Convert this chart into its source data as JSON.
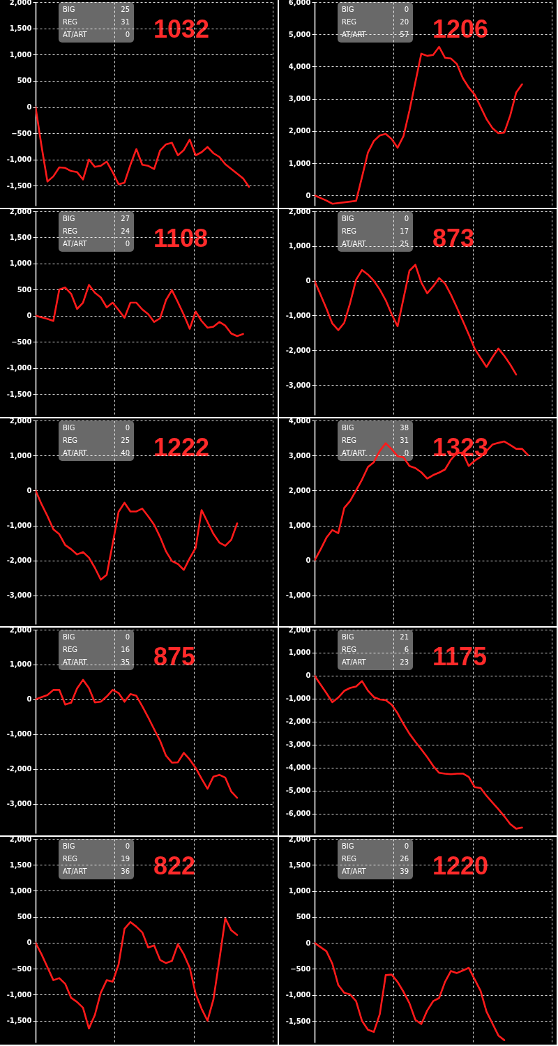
{
  "chart_data": [
    {
      "type": "line",
      "title": "1032",
      "annotations": [
        "BIG",
        "25",
        "REG",
        "31",
        "AT/ART",
        "0"
      ],
      "grid": true,
      "ylim": [
        -1880,
        2000
      ],
      "yticks": [
        {
          "value": 2000,
          "label": "2,000"
        },
        {
          "value": 1500,
          "label": "1,500"
        },
        {
          "value": 1000,
          "label": "1,000"
        },
        500,
        0,
        -500,
        {
          "value": -1000,
          "label": "-1,000"
        },
        {
          "value": -1500,
          "label": "-1,500"
        }
      ],
      "categories": [
        null,
        null,
        null,
        null,
        null,
        null,
        null,
        null,
        null,
        null,
        null,
        null,
        null,
        null,
        null,
        null,
        null,
        null,
        null,
        null,
        null,
        null,
        null,
        null,
        null,
        null,
        null,
        null,
        null,
        null,
        null,
        null,
        null,
        null,
        null,
        null,
        null,
        null,
        null,
        null,
        null
      ],
      "series": [
        {
          "color": "#ff1a1a",
          "values": [
            0,
            -740,
            -1420,
            -1320,
            -1150,
            -1160,
            -1220,
            -1240,
            -1380,
            -1000,
            -1140,
            -1120,
            -1040,
            -1240,
            -1470,
            -1440,
            -1100,
            -800,
            -1100,
            -1120,
            -1180,
            -830,
            -710,
            -680,
            -920,
            -820,
            -620,
            -920,
            -860,
            -760,
            -880,
            -950,
            -1090,
            -1180,
            -1270,
            -1360,
            -1520,
            null,
            null,
            null,
            null
          ]
        }
      ]
    },
    {
      "type": "line",
      "title": "1206",
      "annotations": [
        "BIG",
        "0",
        "REG",
        "20",
        "AT/ART",
        "57"
      ],
      "grid": true,
      "ylim": [
        -320,
        6000
      ],
      "yticks": [
        {
          "value": 6000,
          "label": "6,000"
        },
        {
          "value": 5000,
          "label": "5,000"
        },
        {
          "value": 4000,
          "label": "4,000"
        },
        {
          "value": 3000,
          "label": "3,000"
        },
        {
          "value": 2000,
          "label": "2,000"
        },
        {
          "value": 1000,
          "label": "1,000"
        },
        0
      ],
      "categories": [
        null,
        null,
        null,
        null,
        null,
        null,
        null,
        null,
        null,
        null,
        null,
        null,
        null,
        null,
        null,
        null,
        null,
        null,
        null,
        null,
        null,
        null,
        null,
        null,
        null,
        null,
        null,
        null,
        null,
        null,
        null,
        null,
        null,
        null,
        null,
        null,
        null,
        null,
        null,
        null,
        null
      ],
      "series": [
        {
          "color": "#ff1a1a",
          "values": [
            0,
            -80,
            -160,
            -260,
            null,
            null,
            null,
            -170,
            570,
            1330,
            1690,
            1860,
            1910,
            1750,
            1480,
            1840,
            2630,
            3510,
            4400,
            4330,
            4360,
            4610,
            4270,
            4250,
            4080,
            3640,
            3350,
            3130,
            2750,
            2370,
            2090,
            1930,
            1950,
            2480,
            3190,
            3450,
            null,
            null,
            null,
            null,
            null
          ]
        }
      ]
    },
    {
      "type": "line",
      "title": "1108",
      "annotations": [
        "BIG",
        "27",
        "REG",
        "24",
        "AT/ART",
        "0"
      ],
      "grid": true,
      "ylim": [
        -1900,
        2000
      ],
      "yticks": [
        {
          "value": 2000,
          "label": "2,000"
        },
        {
          "value": 1500,
          "label": "1,500"
        },
        {
          "value": 1000,
          "label": "1,000"
        },
        500,
        0,
        -500,
        {
          "value": -1000,
          "label": "-1,000"
        },
        {
          "value": -1500,
          "label": "-1,500"
        }
      ],
      "categories": [
        null,
        null,
        null,
        null,
        null,
        null,
        null,
        null,
        null,
        null,
        null,
        null,
        null,
        null,
        null,
        null,
        null,
        null,
        null,
        null,
        null,
        null,
        null,
        null,
        null,
        null,
        null,
        null,
        null,
        null,
        null,
        null,
        null,
        null,
        null,
        null,
        null,
        null,
        null,
        null,
        null
      ],
      "series": [
        {
          "color": "#ff1a1a",
          "values": [
            0,
            -30,
            -60,
            -100,
            500,
            540,
            420,
            130,
            250,
            590,
            440,
            350,
            160,
            250,
            110,
            -40,
            250,
            250,
            120,
            30,
            -120,
            -50,
            300,
            490,
            260,
            20,
            -250,
            80,
            -100,
            -230,
            -210,
            -120,
            -190,
            -340,
            -390,
            -350,
            null,
            null,
            null,
            null,
            null
          ]
        }
      ]
    },
    {
      "type": "line",
      "title": "873",
      "annotations": [
        "BIG",
        "0",
        "REG",
        "17",
        "AT/ART",
        "25"
      ],
      "grid": true,
      "ylim": [
        -3860,
        2000
      ],
      "yticks": [
        {
          "value": 2000,
          "label": "2,000"
        },
        {
          "value": 1000,
          "label": "1,000"
        },
        0,
        {
          "value": -1000,
          "label": "-1,000"
        },
        {
          "value": -2000,
          "label": "-2,000"
        },
        {
          "value": -3000,
          "label": "-3,000"
        }
      ],
      "categories": [
        null,
        null,
        null,
        null,
        null,
        null,
        null,
        null,
        null,
        null,
        null,
        null,
        null,
        null,
        null,
        null,
        null,
        null,
        null,
        null,
        null,
        null,
        null,
        null,
        null,
        null,
        null,
        null,
        null,
        null,
        null,
        null,
        null,
        null,
        null,
        null,
        null,
        null,
        null,
        null,
        null
      ],
      "series": [
        {
          "color": "#ff1a1a",
          "values": [
            0,
            -400,
            -800,
            -1230,
            -1420,
            -1210,
            -640,
            30,
            310,
            180,
            0,
            -250,
            -560,
            -960,
            -1310,
            -510,
            290,
            460,
            -50,
            -360,
            -160,
            80,
            -80,
            -400,
            -770,
            -1150,
            -1540,
            -1950,
            -2220,
            -2480,
            -2200,
            -1950,
            -2160,
            -2410,
            -2700,
            null,
            null,
            null,
            null,
            null,
            null
          ]
        }
      ]
    },
    {
      "type": "line",
      "title": "1222",
      "annotations": [
        "BIG",
        "0",
        "REG",
        "25",
        "AT/ART",
        "40"
      ],
      "grid": true,
      "ylim": [
        -3820,
        2000
      ],
      "yticks": [
        {
          "value": 2000,
          "label": "2,000"
        },
        {
          "value": 1000,
          "label": "1,000"
        },
        0,
        {
          "value": -1000,
          "label": "-1,000"
        },
        {
          "value": -2000,
          "label": "-2,000"
        },
        {
          "value": -3000,
          "label": "-3,000"
        }
      ],
      "categories": [
        null,
        null,
        null,
        null,
        null,
        null,
        null,
        null,
        null,
        null,
        null,
        null,
        null,
        null,
        null,
        null,
        null,
        null,
        null,
        null,
        null,
        null,
        null,
        null,
        null,
        null,
        null,
        null,
        null,
        null,
        null,
        null,
        null,
        null,
        null,
        null,
        null,
        null,
        null,
        null,
        null
      ],
      "series": [
        {
          "color": "#ff1a1a",
          "values": [
            0,
            -390,
            -730,
            -1110,
            -1250,
            -1560,
            -1680,
            -1830,
            -1760,
            -1920,
            -2210,
            -2550,
            -2410,
            -1530,
            -610,
            -350,
            -600,
            -600,
            -520,
            -740,
            -980,
            -1330,
            -1740,
            -2020,
            -2100,
            -2270,
            -1940,
            -1640,
            -560,
            -900,
            -1240,
            -1490,
            -1580,
            -1410,
            -940,
            null,
            null,
            null,
            null,
            null,
            null
          ]
        }
      ]
    },
    {
      "type": "line",
      "title": "1323",
      "annotations": [
        "BIG",
        "38",
        "REG",
        "31",
        "AT/ART",
        "0"
      ],
      "grid": true,
      "ylim": [
        -1820,
        4000
      ],
      "yticks": [
        {
          "value": 4000,
          "label": "4,000"
        },
        {
          "value": 3000,
          "label": "3,000"
        },
        {
          "value": 2000,
          "label": "2,000"
        },
        {
          "value": 1000,
          "label": "1,000"
        },
        0,
        {
          "value": -1000,
          "label": "-1,000"
        }
      ],
      "categories": [
        null,
        null,
        null,
        null,
        null,
        null,
        null,
        null,
        null,
        null,
        null,
        null,
        null,
        null,
        null,
        null,
        null,
        null,
        null,
        null,
        null,
        null,
        null,
        null,
        null,
        null,
        null,
        null,
        null,
        null,
        null,
        null,
        null,
        null,
        null,
        null,
        null,
        null,
        null,
        null,
        null
      ],
      "series": [
        {
          "color": "#ff1a1a",
          "values": [
            0,
            310,
            650,
            870,
            780,
            1500,
            1700,
            2000,
            2310,
            2670,
            2810,
            3130,
            3350,
            3180,
            2980,
            2950,
            2700,
            2640,
            2520,
            2340,
            2440,
            2510,
            2600,
            2880,
            3070,
            3080,
            2700,
            2850,
            2960,
            3130,
            3310,
            3360,
            3400,
            3300,
            3190,
            3190,
            3010,
            null,
            null,
            null,
            null
          ]
        }
      ]
    },
    {
      "type": "line",
      "title": "875",
      "annotations": [
        "BIG",
        "0",
        "REG",
        "16",
        "AT/ART",
        "35"
      ],
      "grid": true,
      "ylim": [
        -3850,
        2000
      ],
      "yticks": [
        {
          "value": 2000,
          "label": "2,000"
        },
        {
          "value": 1000,
          "label": "1,000"
        },
        0,
        {
          "value": -1000,
          "label": "-1,000"
        },
        {
          "value": -2000,
          "label": "-2,000"
        },
        {
          "value": -3000,
          "label": "-3,000"
        }
      ],
      "categories": [
        null,
        null,
        null,
        null,
        null,
        null,
        null,
        null,
        null,
        null,
        null,
        null,
        null,
        null,
        null,
        null,
        null,
        null,
        null,
        null,
        null,
        null,
        null,
        null,
        null,
        null,
        null,
        null,
        null,
        null,
        null,
        null,
        null,
        null,
        null,
        null,
        null,
        null,
        null,
        null,
        null
      ],
      "series": [
        {
          "color": "#ff1a1a",
          "values": [
            0,
            60,
            120,
            270,
            270,
            -150,
            -100,
            310,
            560,
            320,
            -90,
            -70,
            80,
            270,
            180,
            -70,
            150,
            100,
            -200,
            -520,
            -860,
            -1190,
            -1620,
            -1820,
            -1810,
            -1540,
            -1730,
            -1970,
            -2280,
            -2570,
            -2220,
            -2170,
            -2250,
            -2650,
            -2830,
            null,
            null,
            null,
            null,
            null,
            null
          ]
        }
      ]
    },
    {
      "type": "line",
      "title": "1175",
      "annotations": [
        "BIG",
        "21",
        "REG",
        "6",
        "AT/ART",
        "23"
      ],
      "grid": true,
      "ylim": [
        -6850,
        2000
      ],
      "yticks": [
        {
          "value": 2000,
          "label": "2,000"
        },
        {
          "value": 1000,
          "label": "1,000"
        },
        0,
        {
          "value": -1000,
          "label": "-1,000"
        },
        {
          "value": -2000,
          "label": "-2,000"
        },
        {
          "value": -3000,
          "label": "-3,000"
        },
        {
          "value": -4000,
          "label": "-4,000"
        },
        {
          "value": -5000,
          "label": "-5,000"
        },
        {
          "value": -6000,
          "label": "-6,000"
        }
      ],
      "categories": [
        null,
        null,
        null,
        null,
        null,
        null,
        null,
        null,
        null,
        null,
        null,
        null,
        null,
        null,
        null,
        null,
        null,
        null,
        null,
        null,
        null,
        null,
        null,
        null,
        null,
        null,
        null,
        null,
        null,
        null,
        null,
        null,
        null,
        null,
        null,
        null,
        null,
        null,
        null,
        null,
        null
      ],
      "series": [
        {
          "color": "#ff1a1a",
          "values": [
            0,
            -380,
            -760,
            -1150,
            -950,
            -660,
            -530,
            -470,
            -230,
            -650,
            -930,
            -1030,
            -1060,
            -1260,
            -1630,
            -2100,
            -2520,
            -2870,
            -3200,
            -3540,
            -3920,
            -4220,
            -4260,
            -4280,
            -4260,
            -4250,
            -4400,
            -4840,
            -4880,
            -5220,
            -5510,
            -5800,
            -6110,
            -6450,
            -6650,
            -6600,
            null,
            null,
            null,
            null,
            null
          ]
        }
      ]
    },
    {
      "type": "line",
      "title": "822",
      "annotations": [
        "BIG",
        "0",
        "REG",
        "19",
        "AT/ART",
        "36"
      ],
      "grid": true,
      "ylim": [
        -1920,
        2000
      ],
      "yticks": [
        {
          "value": 2000,
          "label": "2,000"
        },
        {
          "value": 1500,
          "label": "1,500"
        },
        {
          "value": 1000,
          "label": "1,000"
        },
        500,
        0,
        -500,
        {
          "value": -1000,
          "label": "-1,000"
        },
        {
          "value": -1500,
          "label": "-1,500"
        }
      ],
      "categories": [
        null,
        null,
        null,
        null,
        null,
        null,
        null,
        null,
        null,
        null,
        null,
        null,
        null,
        null,
        null,
        null,
        null,
        null,
        null,
        null,
        null,
        null,
        null,
        null,
        null,
        null,
        null,
        null,
        null,
        null,
        null,
        null,
        null,
        null,
        null,
        null,
        null,
        null,
        null,
        null,
        null
      ],
      "series": [
        {
          "color": "#ff1a1a",
          "values": [
            0,
            -220,
            -470,
            -720,
            -680,
            -790,
            -1060,
            -1140,
            -1250,
            -1650,
            -1390,
            -960,
            -720,
            -750,
            -420,
            270,
            400,
            310,
            200,
            -90,
            -50,
            -330,
            -390,
            -350,
            -30,
            -220,
            -480,
            -980,
            -1270,
            -1500,
            -1090,
            -330,
            470,
            240,
            150,
            null,
            null,
            null,
            null,
            null,
            null
          ]
        }
      ]
    },
    {
      "type": "line",
      "title": "1220",
      "annotations": [
        "BIG",
        "0",
        "REG",
        "26",
        "AT/ART",
        "39"
      ],
      "grid": true,
      "ylim": [
        -1915,
        2000
      ],
      "yticks": [
        {
          "value": 2000,
          "label": "2,000"
        },
        {
          "value": 1500,
          "label": "1,500"
        },
        {
          "value": 1000,
          "label": "1,000"
        },
        500,
        0,
        -500,
        {
          "value": -1000,
          "label": "-1,000"
        },
        {
          "value": -1500,
          "label": "-1,500"
        }
      ],
      "categories": [
        null,
        null,
        null,
        null,
        null,
        null,
        null,
        null,
        null,
        null,
        null,
        null,
        null,
        null,
        null,
        null,
        null,
        null,
        null,
        null,
        null,
        null,
        null,
        null,
        null,
        null,
        null,
        null,
        null,
        null,
        null,
        null,
        null,
        null,
        null,
        null,
        null,
        null,
        null,
        null,
        null
      ],
      "series": [
        {
          "color": "#ff1a1a",
          "values": [
            0,
            -80,
            -160,
            -400,
            -810,
            -960,
            -990,
            -1120,
            -1500,
            -1670,
            -1710,
            -1370,
            -620,
            -610,
            -750,
            -940,
            -1160,
            -1480,
            -1560,
            -1300,
            -1120,
            -1060,
            -750,
            -540,
            -580,
            -530,
            -480,
            -700,
            -920,
            -1320,
            -1550,
            -1780,
            -1870,
            null,
            null,
            null,
            null,
            null,
            null,
            null,
            null
          ]
        }
      ]
    }
  ]
}
